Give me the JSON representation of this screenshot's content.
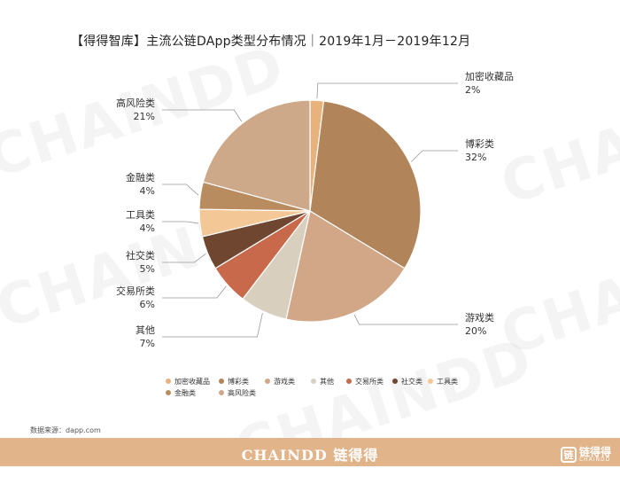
{
  "title": "【得得智库】主流公链DApp类型分布情况｜2019年1月－2019年12月",
  "source": "数据来源：dapp.com",
  "footer": {
    "brand": "CHAINDD 链得得",
    "logo_cn": "链得得",
    "logo_en": "CHAINDD",
    "logo_glyph": "链"
  },
  "watermark": "CHAINDD",
  "colors": {
    "footer": "#e2b48a"
  },
  "chart_data": {
    "type": "pie",
    "title": "【得得智库】主流公链DApp类型分布情况｜2019年1月－2019年12月",
    "unit": "%",
    "legend_position": "bottom",
    "slices": [
      {
        "name": "加密收藏品",
        "value": 2,
        "label": "2%",
        "color": "#e8b27c"
      },
      {
        "name": "博彩类",
        "value": 32,
        "label": "32%",
        "color": "#b2845a"
      },
      {
        "name": "游戏类",
        "value": 20,
        "label": "20%",
        "color": "#d2a787"
      },
      {
        "name": "其他",
        "value": 7,
        "label": "7%",
        "color": "#d8cfbf"
      },
      {
        "name": "交易所类",
        "value": 6,
        "label": "6%",
        "color": "#c9694b"
      },
      {
        "name": "社交类",
        "value": 5,
        "label": "5%",
        "color": "#6f4630"
      },
      {
        "name": "工具类",
        "value": 4,
        "label": "4%",
        "color": "#f4c796"
      },
      {
        "name": "金融类",
        "value": 4,
        "label": "4%",
        "color": "#b98c5f"
      },
      {
        "name": "高风险类",
        "value": 21,
        "label": "21%",
        "color": "#cda889"
      }
    ]
  }
}
